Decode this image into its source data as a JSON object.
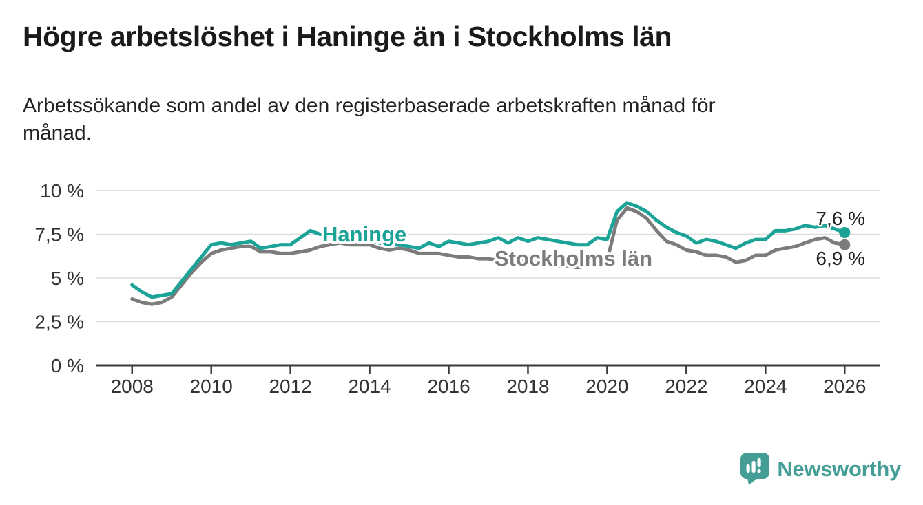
{
  "header": {
    "title": "Högre arbetslöshet i Haninge än i Stockholms län",
    "subtitle": "Arbetssökande som andel av den registerbaserade arbetskraften månad för månad."
  },
  "chart_data": {
    "type": "line",
    "title": "Högre arbetslöshet i Haninge än i Stockholms län",
    "subtitle": "Arbetssökande som andel av den registerbaserade arbetskraften månad för månad.",
    "x_unit": "year",
    "x_start": 2008.0,
    "x_step": 0.25,
    "xlim": [
      2007.1,
      2026.9
    ],
    "ylim": [
      0,
      10
    ],
    "grid": "horizontal",
    "legend_position": "inline-labels",
    "yticks": [
      {
        "value": 0,
        "label": "0 %"
      },
      {
        "value": 2.5,
        "label": "2,5 %"
      },
      {
        "value": 5,
        "label": "5 %"
      },
      {
        "value": 7.5,
        "label": "7,5 %"
      },
      {
        "value": 10,
        "label": "10 %"
      }
    ],
    "xticks": [
      {
        "value": 2008,
        "label": "2008"
      },
      {
        "value": 2010,
        "label": "2010"
      },
      {
        "value": 2012,
        "label": "2012"
      },
      {
        "value": 2014,
        "label": "2014"
      },
      {
        "value": 2016,
        "label": "2016"
      },
      {
        "value": 2018,
        "label": "2018"
      },
      {
        "value": 2020,
        "label": "2020"
      },
      {
        "value": 2022,
        "label": "2022"
      },
      {
        "value": 2024,
        "label": "2024"
      },
      {
        "value": 2026,
        "label": "2026"
      }
    ],
    "series": [
      {
        "name": "Stockholms län",
        "color": "#7c7c7c",
        "end_label": "6,9 %",
        "values": [
          3.8,
          3.6,
          3.5,
          3.6,
          3.9,
          4.6,
          5.3,
          5.9,
          6.4,
          6.6,
          6.7,
          6.8,
          6.8,
          6.5,
          6.5,
          6.4,
          6.4,
          6.5,
          6.6,
          6.8,
          6.9,
          7.0,
          6.9,
          6.9,
          6.9,
          6.7,
          6.6,
          6.7,
          6.6,
          6.4,
          6.4,
          6.4,
          6.3,
          6.2,
          6.2,
          6.1,
          6.1,
          6.0,
          6.0,
          6.0,
          6.0,
          5.9,
          5.8,
          5.7,
          5.7,
          5.6,
          5.7,
          5.9,
          6.0,
          8.3,
          9.0,
          8.8,
          8.4,
          7.7,
          7.1,
          6.9,
          6.6,
          6.5,
          6.3,
          6.3,
          6.2,
          5.9,
          6.0,
          6.3,
          6.3,
          6.6,
          6.7,
          6.8,
          7.0,
          7.2,
          7.3,
          7.0,
          6.9
        ]
      },
      {
        "name": "Haninge",
        "color": "#1aa396",
        "end_label": "7,6 %",
        "values": [
          4.6,
          4.2,
          3.9,
          4.0,
          4.1,
          4.8,
          5.5,
          6.2,
          6.9,
          7.0,
          6.9,
          7.0,
          7.1,
          6.7,
          6.8,
          6.9,
          6.9,
          7.3,
          7.7,
          7.5,
          7.5,
          7.4,
          7.3,
          7.2,
          7.1,
          7.0,
          6.9,
          6.9,
          6.8,
          6.7,
          7.0,
          6.8,
          7.1,
          7.0,
          6.9,
          7.0,
          7.1,
          7.3,
          7.0,
          7.3,
          7.1,
          7.3,
          7.2,
          7.1,
          7.0,
          6.9,
          6.9,
          7.3,
          7.2,
          8.8,
          9.3,
          9.1,
          8.8,
          8.3,
          7.9,
          7.6,
          7.4,
          7.0,
          7.2,
          7.1,
          6.9,
          6.7,
          7.0,
          7.2,
          7.2,
          7.7,
          7.7,
          7.8,
          8.0,
          7.9,
          8.0,
          7.8,
          7.6
        ]
      }
    ]
  },
  "footer": {
    "brand": "Newsworthy",
    "brand_color": "#459e95"
  }
}
